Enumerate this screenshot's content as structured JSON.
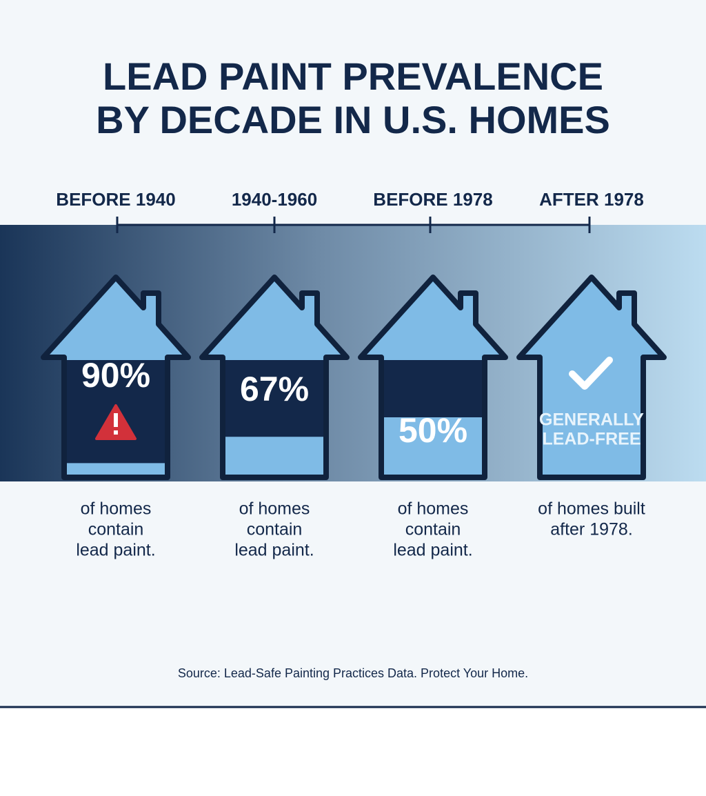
{
  "chart_data": {
    "type": "house",
    "title": [
      "LEAD PAINT PREVALENCE",
      "BY DECADE IN U.S. HOMES"
    ],
    "categories": [
      "BEFORE 1940",
      "1940-1960",
      "BEFORE 1978",
      "AFTER 1978"
    ],
    "values": [
      90,
      67,
      50,
      null
    ],
    "value_labels": [
      "90%",
      "67%",
      "50%",
      null
    ],
    "lead_free_label": [
      "GENERALLY",
      "LEAD-FREE"
    ],
    "descriptions": [
      [
        "of homes",
        "contain",
        "lead paint."
      ],
      [
        "of homes",
        "contain",
        "lead paint."
      ],
      [
        "of homes",
        "contain",
        "lead paint."
      ],
      [
        "of homes built",
        "after 1978."
      ]
    ],
    "source": "Source: Lead-Safe Painting Practices Data. Protect Your Home.",
    "fill_color": "#13284a",
    "house_color": "#7fbbe6"
  }
}
